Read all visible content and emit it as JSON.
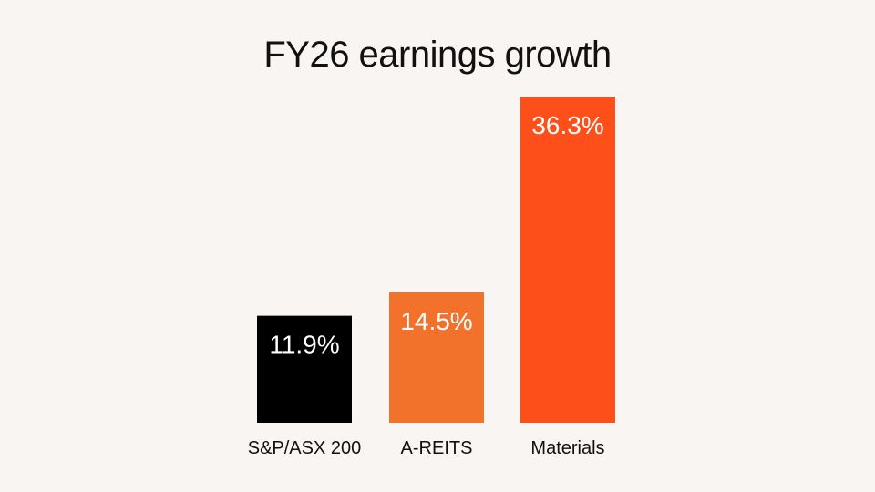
{
  "chart_data": {
    "type": "bar",
    "title": "FY26 earnings growth",
    "xlabel": "",
    "ylabel": "",
    "categories": [
      "S&P/ASX 200",
      "A-REITS",
      "Materials"
    ],
    "values": [
      11.9,
      14.5,
      36.3
    ],
    "data_labels": [
      "11.9%",
      "14.5%",
      "36.3%"
    ],
    "unit": "%",
    "colors": [
      "#000000",
      "#f2722b",
      "#fc4f1a"
    ],
    "grid": false,
    "legend": "none"
  },
  "colors": {
    "background": "#f9f5f3",
    "text": "#111111",
    "label_on_bar": "#ffffff"
  }
}
